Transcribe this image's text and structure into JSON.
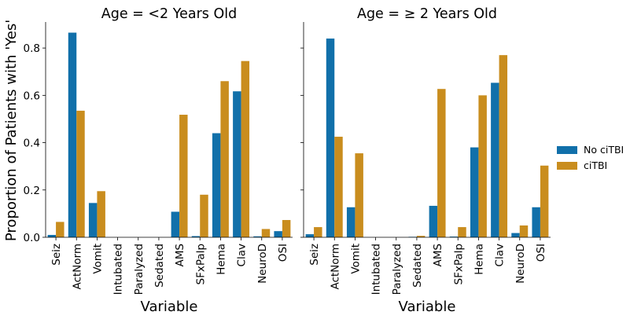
{
  "chart_data": {
    "type": "bar",
    "categories": [
      "Seiz",
      "ActNorm",
      "Vomit",
      "Intubated",
      "Paralyzed",
      "Sedated",
      "AMS",
      "SFxPalp",
      "Hema",
      "Clav",
      "NeuroD",
      "OSI"
    ],
    "ylabel": "Proportion of Patients with 'Yes'",
    "xlabel": "Variable",
    "ylim": [
      0,
      0.91
    ],
    "yticks": [
      "0.0",
      "0.2",
      "0.4",
      "0.6",
      "0.8"
    ],
    "legend": {
      "placement": "right",
      "entries": [
        "No ciTBI",
        "ciTBI"
      ]
    },
    "colors": {
      "No ciTBI": "#1170aa",
      "ciTBI": "#c98d1e"
    },
    "panels": [
      {
        "title": "Age = <2 Years Old",
        "series": [
          {
            "name": "No ciTBI",
            "values": [
              0.01,
              0.865,
              0.145,
              0.0,
              0.0,
              0.0,
              0.108,
              0.005,
              0.44,
              0.617,
              0.004,
              0.026
            ]
          },
          {
            "name": "ciTBI",
            "values": [
              0.065,
              0.535,
              0.195,
              0.0,
              0.0,
              0.0,
              0.518,
              0.18,
              0.66,
              0.745,
              0.035,
              0.073
            ]
          }
        ]
      },
      {
        "title": "Age = ≥ 2 Years Old",
        "series": [
          {
            "name": "No ciTBI",
            "values": [
              0.013,
              0.84,
              0.127,
              0.0,
              0.0,
              0.002,
              0.133,
              0.003,
              0.38,
              0.653,
              0.018,
              0.127
            ]
          },
          {
            "name": "ciTBI",
            "values": [
              0.043,
              0.425,
              0.355,
              0.0,
              0.0,
              0.006,
              0.627,
              0.043,
              0.6,
              0.77,
              0.05,
              0.303
            ]
          }
        ]
      }
    ]
  }
}
